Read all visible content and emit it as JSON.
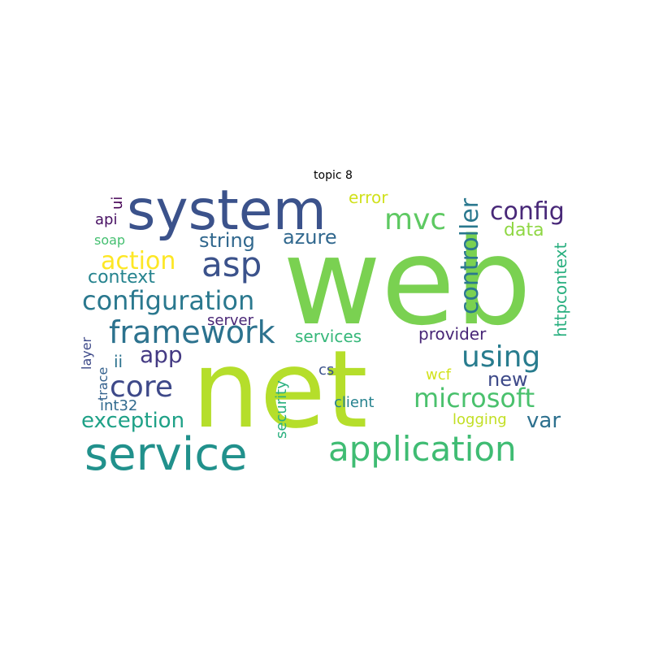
{
  "title": "topic 8",
  "words": [
    {
      "text": "web",
      "color": "#7ad151"
    },
    {
      "text": "net",
      "color": "#b5de2b"
    },
    {
      "text": "system",
      "color": "#3b528b"
    },
    {
      "text": "service",
      "color": "#21918c"
    },
    {
      "text": "application",
      "color": "#3fbc73"
    },
    {
      "text": "framework",
      "color": "#2c728e"
    },
    {
      "text": "configuration",
      "color": "#2a788e"
    },
    {
      "text": "microsoft",
      "color": "#4ac16d"
    },
    {
      "text": "asp",
      "color": "#3b528b"
    },
    {
      "text": "using",
      "color": "#287c8e"
    },
    {
      "text": "mvc",
      "color": "#5ec962"
    },
    {
      "text": "core",
      "color": "#3e4989"
    },
    {
      "text": "config",
      "color": "#482878"
    },
    {
      "text": "action",
      "color": "#fde725"
    },
    {
      "text": "exception",
      "color": "#1fa187"
    },
    {
      "text": "controller",
      "color": "#2a788e"
    },
    {
      "text": "app",
      "color": "#443a83"
    },
    {
      "text": "string",
      "color": "#31688e"
    },
    {
      "text": "azure",
      "color": "#31688e"
    },
    {
      "text": "var",
      "color": "#2d708e"
    },
    {
      "text": "new",
      "color": "#3e4a89"
    },
    {
      "text": "context",
      "color": "#25838e"
    },
    {
      "text": "error",
      "color": "#d0e11c"
    },
    {
      "text": "data",
      "color": "#8fd744"
    },
    {
      "text": "provider",
      "color": "#482677"
    },
    {
      "text": "services",
      "color": "#35b779"
    },
    {
      "text": "httpcontext",
      "color": "#29af7f"
    },
    {
      "text": "api",
      "color": "#471063"
    },
    {
      "text": "ui",
      "color": "#440154"
    },
    {
      "text": "soap",
      "color": "#44bf70"
    },
    {
      "text": "server",
      "color": "#482475"
    },
    {
      "text": "layer",
      "color": "#3e4a89"
    },
    {
      "text": "ii",
      "color": "#2c728e"
    },
    {
      "text": "trace",
      "color": "#34618d"
    },
    {
      "text": "security",
      "color": "#2ab07f"
    },
    {
      "text": "cs",
      "color": "#3b528b"
    },
    {
      "text": "wcf",
      "color": "#d2e21b"
    },
    {
      "text": "int32",
      "color": "#306a8e"
    },
    {
      "text": "client",
      "color": "#26828e"
    },
    {
      "text": "logging",
      "color": "#c2df23"
    }
  ]
}
